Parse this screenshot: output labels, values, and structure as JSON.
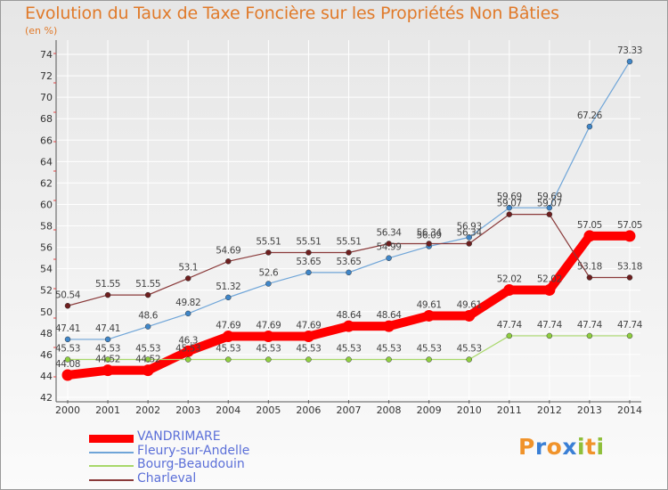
{
  "title": "Evolution du Taux de Taxe Foncière sur les Propriétés Non Bâties",
  "unit_label": "(en %)",
  "logo": {
    "text": "Proxiti",
    "letters": [
      "P",
      "r",
      "o",
      "x",
      "i",
      "t",
      "i"
    ],
    "colors": [
      "#f0932b",
      "#3a7fd5",
      "#f0932b",
      "#3a7fd5",
      "#8fbf3a",
      "#f0932b",
      "#8fbf3a"
    ]
  },
  "chart_data": {
    "type": "line",
    "x": [
      "2000",
      "2001",
      "2002",
      "2003",
      "2004",
      "2005",
      "2006",
      "2007",
      "2008",
      "2009",
      "2010",
      "2011",
      "2012",
      "2013",
      "2014"
    ],
    "ylim": [
      42,
      74.5
    ],
    "yticks": [
      42,
      44,
      46,
      48,
      50,
      52,
      54,
      56,
      58,
      60,
      62,
      64,
      66,
      68,
      70,
      72,
      74
    ],
    "grid": true,
    "legend_position": "bottom-left",
    "series": [
      {
        "name": "VANDRIMARE",
        "color": "#ff0000",
        "width": 10,
        "values": [
          44.08,
          44.52,
          44.52,
          46.3,
          47.69,
          47.69,
          47.69,
          48.64,
          48.64,
          49.61,
          49.61,
          52.02,
          52.02,
          57.05,
          57.05
        ],
        "labels": [
          "44.08",
          "44.52",
          "44.52",
          "46.3",
          "47.69",
          "47.69",
          "47.69",
          "48.64",
          "48.64",
          "49.61",
          "49.61",
          "52.02",
          "52.02",
          "57.05",
          "57.05"
        ]
      },
      {
        "name": "Fleury-sur-Andelle",
        "color": "#6fa5d8",
        "marker": "#3f86c8",
        "width": 1.2,
        "values": [
          47.41,
          47.41,
          48.6,
          49.82,
          51.32,
          52.6,
          53.65,
          53.65,
          54.99,
          56.09,
          56.93,
          59.69,
          59.69,
          67.26,
          73.33
        ],
        "labels": [
          "47.41",
          "47.41",
          "48.6",
          "49.82",
          "51.32",
          "52.6",
          "53.65",
          "53.65",
          "54.99",
          "56.09",
          "56.93",
          "59.69",
          "59.69",
          "67.26",
          "73.33"
        ]
      },
      {
        "name": "Bourg-Beaudouin",
        "color": "#a8d86a",
        "marker": "#8fcf3f",
        "width": 1.2,
        "values": [
          45.53,
          45.53,
          45.53,
          45.53,
          45.53,
          45.53,
          45.53,
          45.53,
          45.53,
          45.53,
          45.53,
          47.74,
          47.74,
          47.74,
          47.74
        ],
        "labels": [
          "45.53",
          "45.53",
          "45.53",
          "45.53",
          "45.53",
          "45.53",
          "45.53",
          "45.53",
          "45.53",
          "45.53",
          "45.53",
          "47.74",
          "47.74",
          "47.74",
          "47.74"
        ]
      },
      {
        "name": "Charleval",
        "color": "#8a3a3a",
        "marker": "#6e1f1f",
        "width": 1.2,
        "values": [
          50.54,
          51.55,
          51.55,
          53.1,
          54.69,
          55.51,
          55.51,
          55.51,
          56.34,
          56.34,
          56.34,
          59.07,
          59.07,
          53.18,
          53.18
        ],
        "labels": [
          "50.54",
          "51.55",
          "51.55",
          "53.1",
          "54.69",
          "55.51",
          "55.51",
          "55.51",
          "56.34",
          "56.34",
          "56.34",
          "59.07",
          "59.07",
          "53.18",
          "53.18"
        ]
      }
    ]
  }
}
